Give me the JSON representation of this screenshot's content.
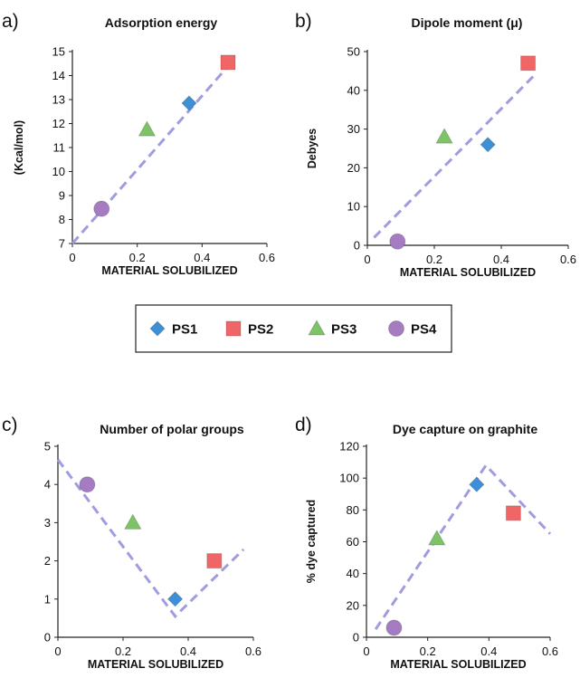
{
  "legend": {
    "items": [
      {
        "label": "PS1",
        "color": "#3d8fd6",
        "shape": "diamond"
      },
      {
        "label": "PS2",
        "color": "#f06666",
        "shape": "square"
      },
      {
        "label": "PS3",
        "color": "#7cc466",
        "shape": "triangle"
      },
      {
        "label": "PS4",
        "color": "#a57cc2",
        "shape": "circle"
      }
    ]
  },
  "chart_data": [
    {
      "type": "scatter",
      "panel_label": "a)",
      "title": "Adsorption energy",
      "xlabel": "MATERIAL SOLUBILIZED",
      "ylabel": "(Kcal/mol)",
      "xlim": [
        0,
        0.6
      ],
      "ylim": [
        7,
        15
      ],
      "xticks": [
        "0",
        "0.2",
        "0.4",
        "0.6"
      ],
      "yticks": [
        "7",
        "8",
        "9",
        "10",
        "11",
        "12",
        "13",
        "14",
        "15"
      ],
      "points": [
        {
          "series": "PS1",
          "x": 0.36,
          "y": 12.85
        },
        {
          "series": "PS2",
          "x": 0.48,
          "y": 14.55
        },
        {
          "series": "PS3",
          "x": 0.23,
          "y": 11.75
        },
        {
          "series": "PS4",
          "x": 0.09,
          "y": 8.45
        }
      ],
      "trendline": [
        [
          0.0,
          7.0
        ],
        [
          0.5,
          14.7
        ]
      ]
    },
    {
      "type": "scatter",
      "panel_label": "b)",
      "title": "Dipole moment (μ)",
      "xlabel": "MATERIAL SOLUBILIZED",
      "ylabel": "Debyes",
      "xlim": [
        0,
        0.6
      ],
      "ylim": [
        0,
        50
      ],
      "xticks": [
        "0",
        "0.2",
        "0.4",
        "0.6"
      ],
      "yticks": [
        "0",
        "10",
        "20",
        "30",
        "40",
        "50"
      ],
      "points": [
        {
          "series": "PS1",
          "x": 0.36,
          "y": 26
        },
        {
          "series": "PS2",
          "x": 0.48,
          "y": 47
        },
        {
          "series": "PS3",
          "x": 0.23,
          "y": 28
        },
        {
          "series": "PS4",
          "x": 0.09,
          "y": 1
        }
      ],
      "trendline": [
        [
          0.02,
          2.0
        ],
        [
          0.5,
          44.0
        ]
      ]
    },
    {
      "type": "scatter",
      "panel_label": "c)",
      "title": "Number of polar groups",
      "xlabel": "MATERIAL SOLUBILIZED",
      "ylabel": "",
      "xlim": [
        0,
        0.6
      ],
      "ylim": [
        0,
        5
      ],
      "xticks": [
        "0",
        "0.2",
        "0.4",
        "0.6"
      ],
      "yticks": [
        "0",
        "1",
        "2",
        "3",
        "4",
        "5"
      ],
      "points": [
        {
          "series": "PS1",
          "x": 0.36,
          "y": 1
        },
        {
          "series": "PS2",
          "x": 0.48,
          "y": 2
        },
        {
          "series": "PS3",
          "x": 0.23,
          "y": 3
        },
        {
          "series": "PS4",
          "x": 0.09,
          "y": 4
        }
      ],
      "trendline": [
        [
          0.0,
          4.65
        ],
        [
          0.36,
          0.55
        ],
        [
          0.57,
          2.3
        ]
      ]
    },
    {
      "type": "scatter",
      "panel_label": "d)",
      "title": "Dye capture on graphite",
      "xlabel": "MATERIAL SOLUBILIZED",
      "ylabel": "% dye captured",
      "xlim": [
        0,
        0.6
      ],
      "ylim": [
        0,
        120
      ],
      "xticks": [
        "0",
        "0.2",
        "0.4",
        "0.6"
      ],
      "yticks": [
        "0",
        "20",
        "40",
        "60",
        "80",
        "100",
        "120"
      ],
      "points": [
        {
          "series": "PS1",
          "x": 0.36,
          "y": 96
        },
        {
          "series": "PS2",
          "x": 0.48,
          "y": 78
        },
        {
          "series": "PS3",
          "x": 0.23,
          "y": 62
        },
        {
          "series": "PS4",
          "x": 0.09,
          "y": 6
        }
      ],
      "trendline": [
        [
          0.03,
          5.0
        ],
        [
          0.39,
          108.0
        ],
        [
          0.6,
          65.0
        ]
      ]
    }
  ]
}
